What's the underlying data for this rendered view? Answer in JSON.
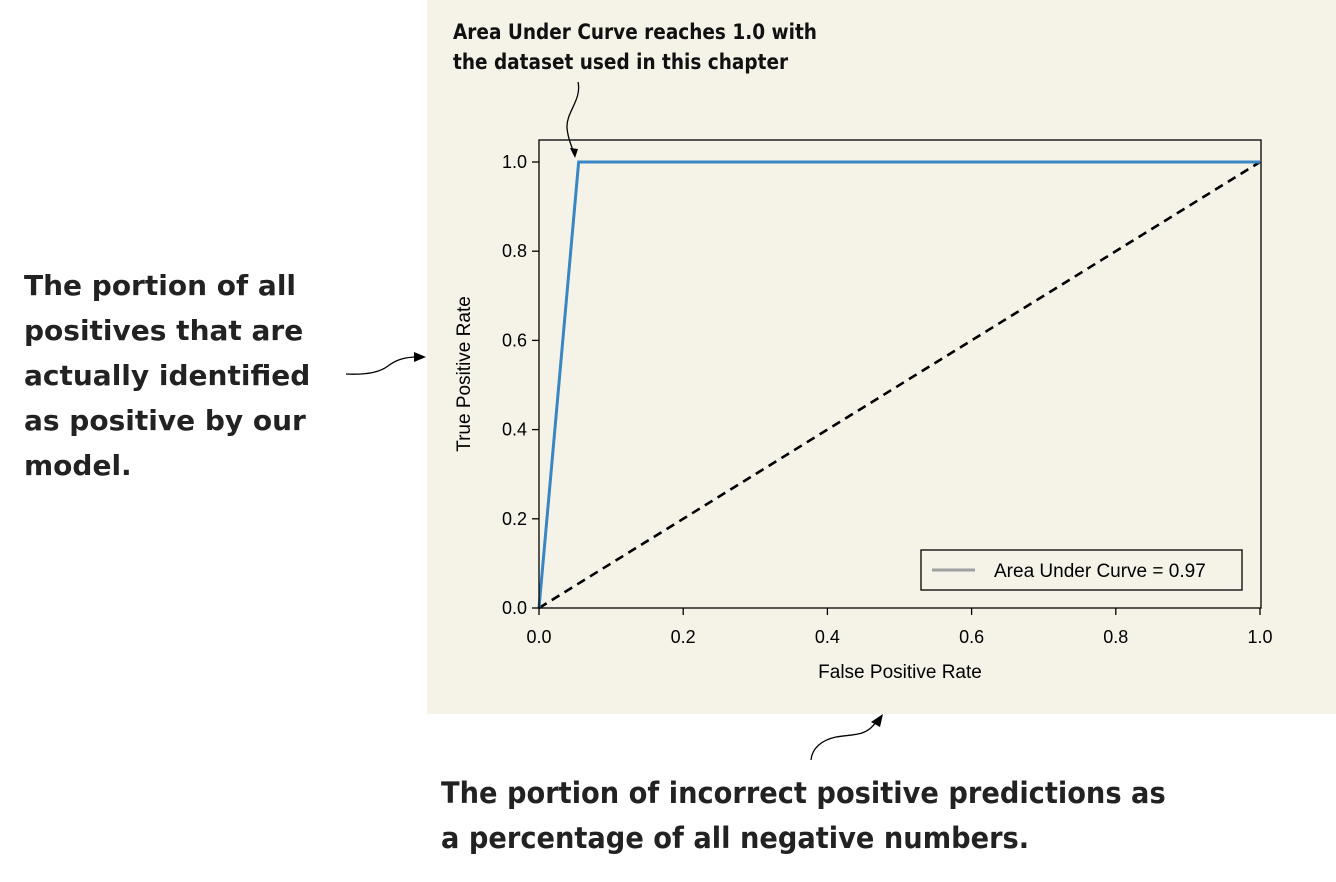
{
  "annotations": {
    "top_line1": "Area Under Curve reaches 1.0 with",
    "top_line2": "the dataset used in this chapter",
    "left": "The portion of all positives that are actually identified as positive by our model.",
    "bottom_line1": "The portion of incorrect positive predictions as",
    "bottom_line2": "a percentage of all negative numbers."
  },
  "colors": {
    "panel_background": "#f5f3e8",
    "roc_curve": "#3a86c4",
    "chance_line": "#000000",
    "legend_line": "#a0a0a0"
  },
  "chart_data": {
    "type": "line",
    "title": "",
    "xlabel": "False Positive Rate",
    "ylabel": "True Positive Rate",
    "xlim": [
      0,
      1
    ],
    "ylim": [
      0,
      1
    ],
    "xticks": [
      "0.0",
      "0.2",
      "0.4",
      "0.6",
      "0.8",
      "1.0"
    ],
    "yticks": [
      "0.0",
      "0.2",
      "0.4",
      "0.6",
      "0.8",
      "1.0"
    ],
    "grid": false,
    "legend_position": "lower-right",
    "series": [
      {
        "name": "Area Under Curve = 0.97",
        "style": "solid",
        "x": [
          0.0,
          0.055,
          1.0
        ],
        "y": [
          0.0,
          1.0,
          1.0
        ]
      },
      {
        "style": "dashed",
        "x": [
          0.0,
          1.0
        ],
        "y": [
          0.0,
          1.0
        ]
      }
    ]
  }
}
